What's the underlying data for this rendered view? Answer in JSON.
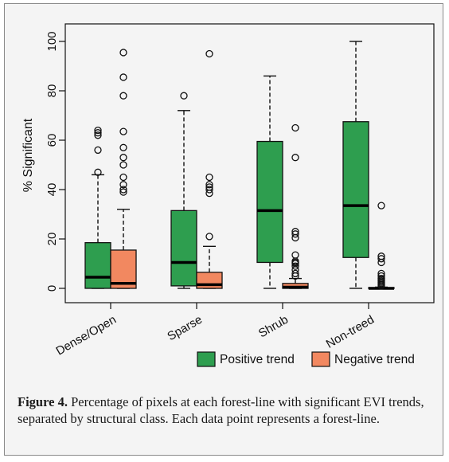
{
  "chart_data": {
    "type": "box",
    "title": "",
    "xlabel": "",
    "ylabel": "% Significant",
    "ylim": [
      0,
      100
    ],
    "yticks": [
      0,
      20,
      40,
      60,
      80,
      100
    ],
    "categories": [
      "Dense/Open",
      "Sparse",
      "Shrub",
      "Non-treed"
    ],
    "legend": {
      "placement": "bottom-right",
      "entries": [
        {
          "label": "Positive trend",
          "color": "#2e9e4f"
        },
        {
          "label": "Negative trend",
          "color": "#f28860"
        }
      ]
    },
    "series": [
      {
        "name": "Positive trend",
        "color": "#2e9e4f",
        "boxes": [
          {
            "whisker_low": 0,
            "q1": 0,
            "median": 4.5,
            "q3": 18.5,
            "whisker_high": 46,
            "outliers": [
              47,
              56,
              62,
              63,
              64
            ]
          },
          {
            "whisker_low": 0,
            "q1": 1,
            "median": 10.5,
            "q3": 31.5,
            "whisker_high": 72,
            "outliers": [
              78
            ]
          },
          {
            "whisker_low": 0,
            "q1": 10.5,
            "median": 31.5,
            "q3": 59.5,
            "whisker_high": 86,
            "outliers": []
          },
          {
            "whisker_low": 0,
            "q1": 12.5,
            "median": 33.5,
            "q3": 67.5,
            "whisker_high": 100,
            "outliers": []
          }
        ]
      },
      {
        "name": "Negative trend",
        "color": "#f28860",
        "boxes": [
          {
            "whisker_low": 0,
            "q1": 0,
            "median": 2,
            "q3": 15.5,
            "whisker_high": 32,
            "outliers": [
              39,
              40,
              42,
              45,
              50,
              53,
              57,
              63.5,
              78,
              85.5,
              95.5
            ]
          },
          {
            "whisker_low": 0,
            "q1": 0,
            "median": 1.5,
            "q3": 6.5,
            "whisker_high": 17,
            "outliers": [
              21,
              38.5,
              40,
              41,
              42,
              45,
              95
            ]
          },
          {
            "whisker_low": 0,
            "q1": 0,
            "median": 0.5,
            "q3": 2,
            "whisker_high": 4,
            "outliers": [
              5,
              6,
              7.5,
              9,
              10,
              10.5,
              11,
              13.5,
              20.5,
              22,
              23,
              53,
              65
            ]
          },
          {
            "whisker_low": 0,
            "q1": 0,
            "median": 0,
            "q3": 0.3,
            "whisker_high": 0.5,
            "outliers": [
              1,
              1.5,
              2,
              2.5,
              3,
              3.5,
              4,
              5,
              6,
              10.5,
              12,
              13,
              33.5
            ]
          }
        ]
      }
    ]
  },
  "caption": {
    "label": "Figure 4.",
    "text": " Percentage of pixels at each forest-line with significant EVI trends, separated by structural class. Each data point represents a forest-line."
  }
}
